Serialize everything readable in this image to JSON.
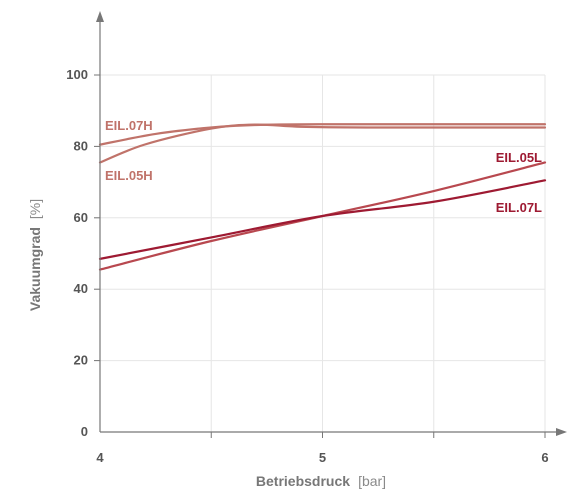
{
  "chart_data": {
    "type": "line",
    "xlabel": "Betriebsdruck",
    "xlabel_unit": "[bar]",
    "ylabel": "Vakuumgrad",
    "ylabel_unit": "[%]",
    "xlim": [
      4,
      6
    ],
    "ylim": [
      0,
      100
    ],
    "x_ticks": [
      "4",
      "5",
      "6"
    ],
    "y_ticks": [
      "0",
      "20",
      "40",
      "60",
      "80",
      "100"
    ],
    "grid": true,
    "colors": {
      "light": "#c0736a",
      "dark": "#9e1a32",
      "grid": "#e6e6e6",
      "axis": "#777777"
    },
    "series": [
      {
        "name": "EIL.07H",
        "color": "#c0736a",
        "points": [
          [
            4,
            80.5
          ],
          [
            4.25,
            83.5
          ],
          [
            4.5,
            85.3
          ],
          [
            4.7,
            86.0
          ],
          [
            5,
            86.2
          ],
          [
            5.5,
            86.2
          ],
          [
            6,
            86.2
          ]
        ]
      },
      {
        "name": "EIL.05H",
        "color": "#c0736a",
        "points": [
          [
            4,
            75.5
          ],
          [
            4.2,
            80.5
          ],
          [
            4.5,
            85.0
          ],
          [
            4.7,
            86.1
          ],
          [
            4.9,
            85.5
          ],
          [
            5.2,
            85.3
          ],
          [
            6,
            85.3
          ]
        ]
      },
      {
        "name": "EIL.05L",
        "color": "#b8484f",
        "points": [
          [
            4,
            45.5
          ],
          [
            4.5,
            53.5
          ],
          [
            5,
            60.5
          ],
          [
            5.5,
            67.5
          ],
          [
            6,
            75.5
          ]
        ]
      },
      {
        "name": "EIL.07L",
        "color": "#9e1a32",
        "points": [
          [
            4,
            48.5
          ],
          [
            4.5,
            54.5
          ],
          [
            5,
            60.5
          ],
          [
            5.5,
            64.5
          ],
          [
            6,
            70.5
          ]
        ]
      }
    ],
    "labels": [
      {
        "text": "EIL.07H",
        "color": "#c0736a"
      },
      {
        "text": "EIL.05H",
        "color": "#c0736a"
      },
      {
        "text": "EIL.05L",
        "color": "#9e1a32"
      },
      {
        "text": "EIL.07L",
        "color": "#9e1a32"
      }
    ]
  }
}
